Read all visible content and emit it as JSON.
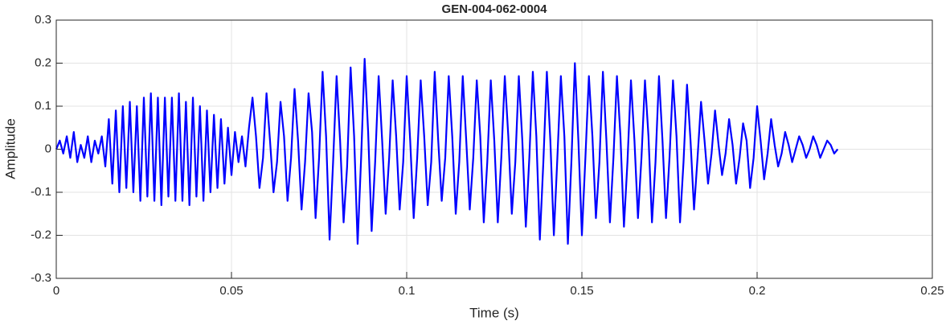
{
  "chart_data": {
    "type": "line",
    "title": "GEN-004-062-0004",
    "xlabel": "Time (s)",
    "ylabel": "Amplitude",
    "color": "#0000ff",
    "grid": true,
    "xlim": [
      0,
      0.25
    ],
    "xticks": [
      0,
      0.05,
      0.1,
      0.15,
      0.2,
      0.25
    ],
    "ylim": [
      -0.3,
      0.3
    ],
    "yticks": [
      -0.3,
      -0.2,
      -0.1,
      0,
      0.1,
      0.2,
      0.3
    ],
    "x": [
      0,
      0.001,
      0.002,
      0.003,
      0.004,
      0.005,
      0.006,
      0.007,
      0.008,
      0.009,
      0.01,
      0.011,
      0.012,
      0.013,
      0.014,
      0.015,
      0.016,
      0.017,
      0.018,
      0.019,
      0.02,
      0.021,
      0.022,
      0.023,
      0.024,
      0.025,
      0.026,
      0.027,
      0.028,
      0.029,
      0.03,
      0.031,
      0.032,
      0.033,
      0.034,
      0.035,
      0.036,
      0.037,
      0.038,
      0.039,
      0.04,
      0.041,
      0.042,
      0.043,
      0.044,
      0.045,
      0.046,
      0.047,
      0.048,
      0.049,
      0.05,
      0.051,
      0.052,
      0.053,
      0.054,
      0.055,
      0.056,
      0.057,
      0.058,
      0.059,
      0.06,
      0.061,
      0.062,
      0.063,
      0.064,
      0.065,
      0.066,
      0.067,
      0.068,
      0.069,
      0.07,
      0.071,
      0.072,
      0.073,
      0.074,
      0.075,
      0.076,
      0.077,
      0.078,
      0.079,
      0.08,
      0.081,
      0.082,
      0.083,
      0.084,
      0.085,
      0.086,
      0.087,
      0.088,
      0.089,
      0.09,
      0.091,
      0.092,
      0.093,
      0.094,
      0.095,
      0.096,
      0.097,
      0.098,
      0.099,
      0.1,
      0.101,
      0.102,
      0.103,
      0.104,
      0.105,
      0.106,
      0.107,
      0.108,
      0.109,
      0.11,
      0.111,
      0.112,
      0.113,
      0.114,
      0.115,
      0.116,
      0.117,
      0.118,
      0.119,
      0.12,
      0.121,
      0.122,
      0.123,
      0.124,
      0.125,
      0.126,
      0.127,
      0.128,
      0.129,
      0.13,
      0.131,
      0.132,
      0.133,
      0.134,
      0.135,
      0.136,
      0.137,
      0.138,
      0.139,
      0.14,
      0.141,
      0.142,
      0.143,
      0.144,
      0.145,
      0.146,
      0.147,
      0.148,
      0.149,
      0.15,
      0.151,
      0.152,
      0.153,
      0.154,
      0.155,
      0.156,
      0.157,
      0.158,
      0.159,
      0.16,
      0.161,
      0.162,
      0.163,
      0.164,
      0.165,
      0.166,
      0.167,
      0.168,
      0.169,
      0.17,
      0.171,
      0.172,
      0.173,
      0.174,
      0.175,
      0.176,
      0.177,
      0.178,
      0.179,
      0.18,
      0.181,
      0.182,
      0.183,
      0.184,
      0.185,
      0.186,
      0.187,
      0.188,
      0.189,
      0.19,
      0.191,
      0.192,
      0.193,
      0.194,
      0.195,
      0.196,
      0.197,
      0.198,
      0.199,
      0.2,
      0.201,
      0.202,
      0.203,
      0.204,
      0.205,
      0.206,
      0.207,
      0.208,
      0.209,
      0.21,
      0.211,
      0.212,
      0.213,
      0.214,
      0.215,
      0.216,
      0.217,
      0.218,
      0.219,
      0.22,
      0.221,
      0.222,
      0.223
    ],
    "values": [
      0,
      0.02,
      -0.01,
      0.03,
      -0.02,
      0.04,
      -0.03,
      0.01,
      -0.02,
      0.03,
      -0.03,
      0.02,
      -0.01,
      0.03,
      -0.04,
      0.07,
      -0.08,
      0.09,
      -0.1,
      0.1,
      -0.09,
      0.11,
      -0.1,
      0.1,
      -0.12,
      0.12,
      -0.11,
      0.13,
      -0.12,
      0.12,
      -0.13,
      0.12,
      -0.11,
      0.12,
      -0.12,
      0.13,
      -0.12,
      0.11,
      -0.13,
      0.12,
      -0.11,
      0.1,
      -0.12,
      0.09,
      -0.1,
      0.08,
      -0.09,
      0.07,
      -0.08,
      0.05,
      -0.06,
      0.04,
      -0.03,
      0.03,
      -0.04,
      0.05,
      0.12,
      0.03,
      -0.09,
      -0.02,
      0.13,
      0.02,
      -0.1,
      -0.03,
      0.11,
      0.03,
      -0.12,
      -0.02,
      0.14,
      0.02,
      -0.14,
      -0.03,
      0.13,
      0.04,
      -0.16,
      -0.02,
      0.18,
      0.03,
      -0.21,
      -0.03,
      0.17,
      0.02,
      -0.17,
      -0.04,
      0.19,
      0.03,
      -0.22,
      -0.02,
      0.21,
      0.04,
      -0.19,
      -0.03,
      0.17,
      0.02,
      -0.15,
      -0.02,
      0.16,
      0.03,
      -0.14,
      -0.03,
      0.17,
      0.02,
      -0.16,
      -0.02,
      0.16,
      0.03,
      -0.13,
      -0.03,
      0.18,
      0.02,
      -0.12,
      -0.02,
      0.17,
      0.03,
      -0.15,
      -0.03,
      0.17,
      0.02,
      -0.14,
      -0.02,
      0.16,
      0.03,
      -0.17,
      -0.03,
      0.16,
      0.02,
      -0.17,
      -0.02,
      0.17,
      0.03,
      -0.15,
      -0.03,
      0.17,
      0.02,
      -0.18,
      -0.02,
      0.18,
      0.03,
      -0.21,
      -0.03,
      0.18,
      0.02,
      -0.2,
      -0.02,
      0.17,
      0.03,
      -0.22,
      -0.03,
      0.2,
      0.02,
      -0.2,
      -0.02,
      0.17,
      0.03,
      -0.16,
      -0.03,
      0.18,
      0.02,
      -0.17,
      -0.02,
      0.17,
      0.03,
      -0.18,
      -0.03,
      0.16,
      0.02,
      -0.16,
      -0.02,
      0.16,
      0.03,
      -0.17,
      -0.03,
      0.17,
      0.02,
      -0.16,
      -0.02,
      0.16,
      0.03,
      -0.17,
      -0.03,
      0.15,
      0.02,
      -0.14,
      -0.02,
      0.11,
      0.02,
      -0.08,
      -0.01,
      0.09,
      0.01,
      -0.06,
      -0.01,
      0.07,
      0.01,
      -0.08,
      -0.02,
      0.06,
      0.02,
      -0.09,
      -0.02,
      0.1,
      0.02,
      -0.07,
      -0.01,
      0.07,
      0.01,
      -0.04,
      -0.01,
      0.04,
      0.01,
      -0.03,
      0,
      0.03,
      0.01,
      -0.02,
      0,
      0.03,
      0.01,
      -0.02,
      0,
      0.02,
      0.01,
      -0.01,
      0
    ]
  }
}
